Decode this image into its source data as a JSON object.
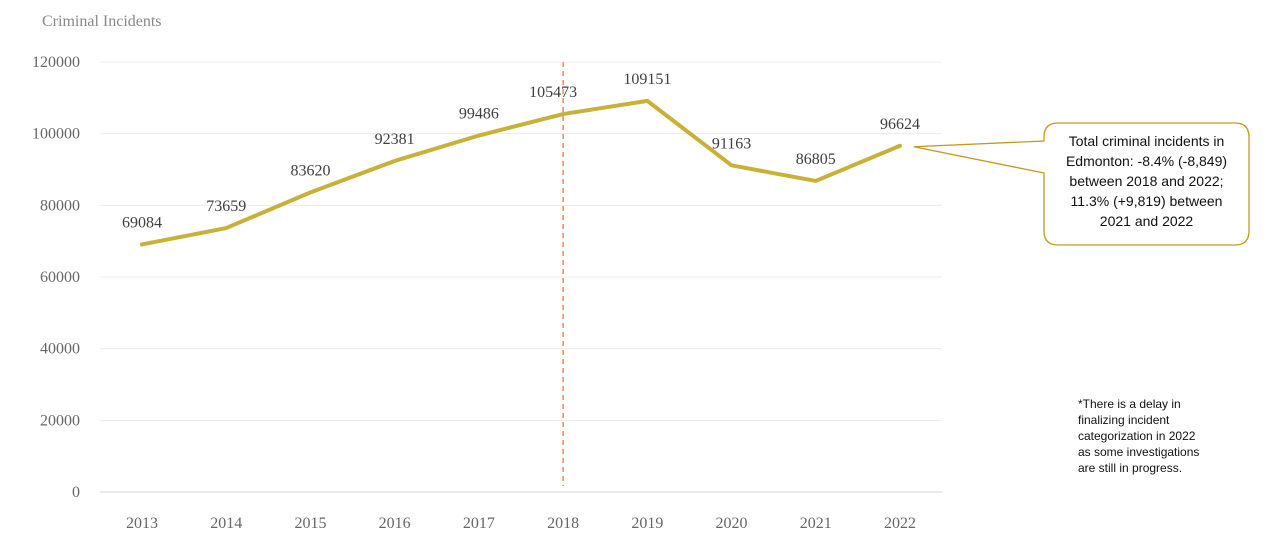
{
  "chart_data": {
    "type": "line",
    "ylabel": "Criminal Incidents",
    "xlabel": "",
    "categories": [
      "2013",
      "2014",
      "2015",
      "2016",
      "2017",
      "2018",
      "2019",
      "2020",
      "2021",
      "2022"
    ],
    "series": [
      {
        "values": [
          69084,
          73659,
          83620,
          92381,
          99486,
          105473,
          109151,
          91163,
          86805,
          96624
        ]
      }
    ],
    "data_labels": [
      "69084",
      "73659",
      "83620",
      "92381",
      "99486",
      "105473",
      "109151",
      "91163",
      "86805",
      "96624"
    ],
    "ylim": [
      0,
      120000
    ],
    "yticks": [
      "0",
      "20000",
      "40000",
      "60000",
      "80000",
      "100000",
      "120000"
    ],
    "grid": "horizontal",
    "reference_line": {
      "x": "2018",
      "style": "dashed",
      "color": "#E8793A"
    },
    "series_color": "#C9B037",
    "callout": {
      "lines": [
        "Total criminal incidents in",
        "Edmonton: -8.4% (-8,849)",
        "between 2018 and 2022;",
        "11.3% (+9,819) between",
        "2021 and 2022"
      ],
      "border_color": "#C49A1A",
      "points_to": "2022"
    },
    "footnote": {
      "lines": [
        "*There is a delay in",
        "finalizing incident",
        "categorization in 2022",
        "as some investigations",
        "are still in progress."
      ]
    }
  }
}
